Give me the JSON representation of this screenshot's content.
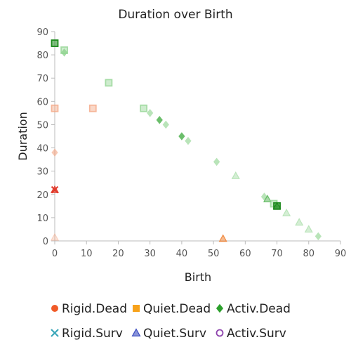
{
  "chart_data": {
    "type": "scatter",
    "title": "Duration over Birth",
    "xlabel": "Birth",
    "ylabel": "Duration",
    "xlim": [
      0,
      90
    ],
    "ylim": [
      0,
      90
    ],
    "x_ticks": [
      "0",
      "10",
      "20",
      "30",
      "40",
      "50",
      "60",
      "70",
      "80",
      "90"
    ],
    "y_ticks": [
      "0",
      "10",
      "20",
      "30",
      "40",
      "50",
      "60",
      "70",
      "80",
      "90"
    ],
    "grid": false,
    "legend_position": "bottom",
    "series": [
      {
        "name": "Rigid.Dead",
        "marker": "circle",
        "color": "#f05a28",
        "points": [
          [
            0,
            22
          ]
        ]
      },
      {
        "name": "Quiet.Dead",
        "marker": "square",
        "color": "#f7a21b",
        "points": []
      },
      {
        "name": "Activ.Dead",
        "marker": "diamond",
        "color": "#2ca02c",
        "points": []
      },
      {
        "name": "Rigid.Surv",
        "marker": "cross",
        "color": "#3aa7b9",
        "points": []
      },
      {
        "name": "Quiet.Surv",
        "marker": "triangle",
        "color": "#3b4cc0",
        "points": []
      },
      {
        "name": "Activ.Surv",
        "marker": "circle-open",
        "color": "#8e44ad",
        "points": []
      }
    ],
    "plotted_points": [
      {
        "x": 0,
        "y": 38,
        "shape": "diamond",
        "color": "#f4a582",
        "alpha": 0.6
      },
      {
        "x": 0,
        "y": 22,
        "shape": "triangle",
        "color": "#e03020",
        "alpha": 0.9
      },
      {
        "x": 0,
        "y": 22,
        "shape": "cross",
        "color": "#e03020",
        "alpha": 0.9
      },
      {
        "x": 0,
        "y": 1.5,
        "shape": "triangle",
        "color": "#f4a582",
        "alpha": 0.5
      },
      {
        "x": 0,
        "y": 57,
        "shape": "square",
        "color": "#f4a582",
        "alpha": 0.8
      },
      {
        "x": 12,
        "y": 57,
        "shape": "square",
        "color": "#f4a582",
        "alpha": 0.8
      },
      {
        "x": 53,
        "y": 1,
        "shape": "triangle",
        "color": "#f08030",
        "alpha": 0.9
      },
      {
        "x": 0,
        "y": 85,
        "shape": "square",
        "color": "#1e8a1e",
        "alpha": 1
      },
      {
        "x": 3,
        "y": 82,
        "shape": "square",
        "color": "#8fd48f",
        "alpha": 0.8
      },
      {
        "x": 3,
        "y": 81,
        "shape": "diamond",
        "color": "#8fd48f",
        "alpha": 0.8
      },
      {
        "x": 17,
        "y": 68,
        "shape": "square",
        "color": "#8fd48f",
        "alpha": 0.8
      },
      {
        "x": 28,
        "y": 57,
        "shape": "square",
        "color": "#8fd48f",
        "alpha": 0.8
      },
      {
        "x": 30,
        "y": 55,
        "shape": "diamond",
        "color": "#a8dea8",
        "alpha": 0.8
      },
      {
        "x": 33,
        "y": 52,
        "shape": "diamond",
        "color": "#5cb85c",
        "alpha": 0.9
      },
      {
        "x": 35,
        "y": 50,
        "shape": "diamond",
        "color": "#a8dea8",
        "alpha": 0.8
      },
      {
        "x": 40,
        "y": 45,
        "shape": "diamond",
        "color": "#5cb85c",
        "alpha": 0.9
      },
      {
        "x": 42,
        "y": 43,
        "shape": "diamond",
        "color": "#a8dea8",
        "alpha": 0.8
      },
      {
        "x": 51,
        "y": 34,
        "shape": "diamond",
        "color": "#a8dea8",
        "alpha": 0.8
      },
      {
        "x": 57,
        "y": 28,
        "shape": "triangle",
        "color": "#a8dea8",
        "alpha": 0.8
      },
      {
        "x": 66,
        "y": 19,
        "shape": "diamond",
        "color": "#a8dea8",
        "alpha": 0.8
      },
      {
        "x": 67,
        "y": 18,
        "shape": "triangle",
        "color": "#5cb85c",
        "alpha": 0.9
      },
      {
        "x": 69,
        "y": 16,
        "shape": "square",
        "color": "#8fd48f",
        "alpha": 0.8
      },
      {
        "x": 70,
        "y": 15,
        "shape": "square",
        "color": "#1e8a1e",
        "alpha": 1
      },
      {
        "x": 70,
        "y": 15,
        "shape": "triangle",
        "color": "#1e8a1e",
        "alpha": 1
      },
      {
        "x": 73,
        "y": 12,
        "shape": "triangle",
        "color": "#a8dea8",
        "alpha": 0.8
      },
      {
        "x": 77,
        "y": 8,
        "shape": "triangle",
        "color": "#a8dea8",
        "alpha": 0.8
      },
      {
        "x": 80,
        "y": 5,
        "shape": "triangle",
        "color": "#a8dea8",
        "alpha": 0.8
      },
      {
        "x": 83,
        "y": 2,
        "shape": "diamond",
        "color": "#a8dea8",
        "alpha": 0.8
      }
    ]
  }
}
